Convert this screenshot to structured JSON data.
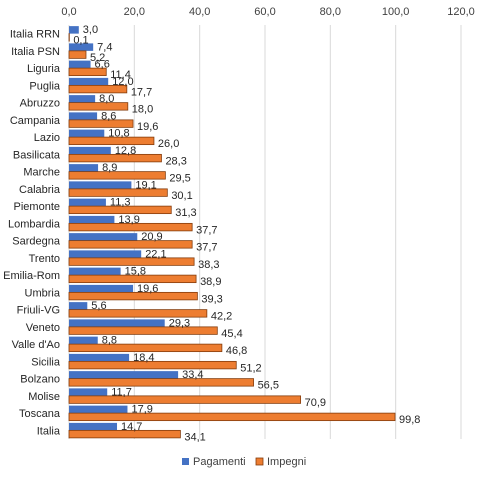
{
  "chart_data": {
    "type": "bar",
    "orientation": "horizontal",
    "categories": [
      "Italia RRN",
      "Italia PSN",
      "Liguria",
      "Puglia",
      "Abruzzo",
      "Campania",
      "Lazio",
      "Basilicata",
      "Marche",
      "Calabria",
      "Piemonte",
      "Lombardia",
      "Sardegna",
      "Trento",
      "Emilia-Rom",
      "Umbria",
      "Friuli-VG",
      "Veneto",
      "Valle d'Ao",
      "Sicilia",
      "Bolzano",
      "Molise",
      "Toscana",
      "Italia"
    ],
    "series": [
      {
        "name": "Pagamenti",
        "values": [
          3.0,
          7.4,
          6.6,
          12.0,
          8.0,
          8.6,
          10.8,
          12.8,
          8.9,
          19.1,
          11.3,
          13.9,
          20.9,
          22.1,
          15.8,
          19.6,
          5.6,
          29.3,
          8.8,
          18.4,
          33.4,
          11.7,
          17.9,
          14.7
        ],
        "labels": [
          "3,0",
          "7,4",
          "6,6",
          "12,0",
          "8,0",
          "8,6",
          "10,8",
          "12,8",
          "8,9",
          "19,1",
          "11,3",
          "13,9",
          "20,9",
          "22,1",
          "15,8",
          "19,6",
          "5,6",
          "29,3",
          "8,8",
          "18,4",
          "33,4",
          "11,7",
          "17,9",
          "14,7"
        ],
        "color": "#4472C4"
      },
      {
        "name": "Impegni",
        "values": [
          0.1,
          5.2,
          11.4,
          17.7,
          18.0,
          19.6,
          26.0,
          28.3,
          29.5,
          30.1,
          31.3,
          37.7,
          37.7,
          38.3,
          38.9,
          39.3,
          42.2,
          45.4,
          46.8,
          51.2,
          56.5,
          70.9,
          99.8,
          34.1
        ],
        "labels": [
          "0,1",
          "5,2",
          "11,4",
          "17,7",
          "18,0",
          "19,6",
          "26,0",
          "28,3",
          "29,5",
          "30,1",
          "31,3",
          "37,7",
          "37,7",
          "38,3",
          "38,9",
          "39,3",
          "42,2",
          "45,4",
          "46,8",
          "51,2",
          "56,5",
          "70,9",
          "99,8",
          "34,1"
        ],
        "color": "#ED7D31",
        "border": "#843C0C"
      }
    ],
    "xlim": [
      0,
      120
    ],
    "ticks": [
      0,
      20,
      40,
      60,
      80,
      100,
      120
    ],
    "tick_labels": [
      "0,0",
      "20,0",
      "40,0",
      "60,0",
      "80,0",
      "100,0",
      "120,0"
    ],
    "axis_position": "top",
    "grid": true,
    "legend_position": "bottom"
  }
}
